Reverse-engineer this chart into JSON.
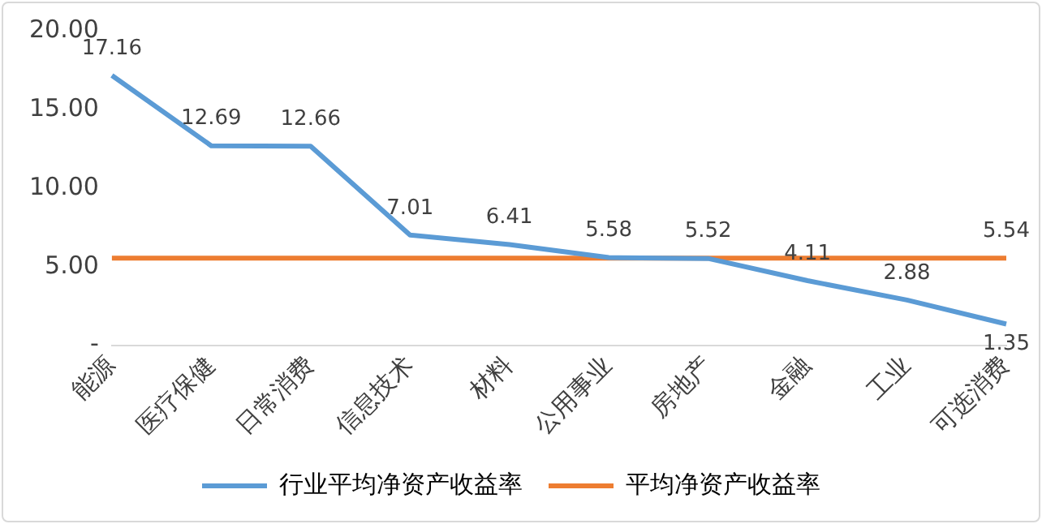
{
  "chart_data": {
    "type": "line",
    "categories": [
      "能源",
      "医疗保健",
      "日常消费",
      "信息技术",
      "材料",
      "公用事业",
      "房地产",
      "金融",
      "工业",
      "可选消费"
    ],
    "series": [
      {
        "name": "行业平均净资产收益率",
        "color": "#5b9bd5",
        "values": [
          17.16,
          12.69,
          12.66,
          7.01,
          6.41,
          5.58,
          5.52,
          4.11,
          2.88,
          1.35
        ],
        "value_labels": [
          "17.16",
          "12.69",
          "12.66",
          "7.01",
          "6.41",
          "5.58",
          "5.52",
          "4.11",
          "2.88",
          "1.35"
        ]
      },
      {
        "name": "平均净资产收益率",
        "color": "#ed7d31",
        "values": [
          5.54,
          5.54,
          5.54,
          5.54,
          5.54,
          5.54,
          5.54,
          5.54,
          5.54,
          5.54
        ],
        "value_labels": [
          null,
          null,
          null,
          null,
          null,
          null,
          null,
          null,
          null,
          "5.54"
        ]
      }
    ],
    "ylim": [
      0,
      20
    ],
    "yticks": [
      {
        "value": 0,
        "label": "-"
      },
      {
        "value": 5,
        "label": "5.00"
      },
      {
        "value": 10,
        "label": "10.00"
      },
      {
        "value": 15,
        "label": "15.00"
      },
      {
        "value": 20,
        "label": "20.00"
      }
    ],
    "grid": false,
    "legend": "bottom",
    "marker": "none",
    "line_style": "solid"
  }
}
